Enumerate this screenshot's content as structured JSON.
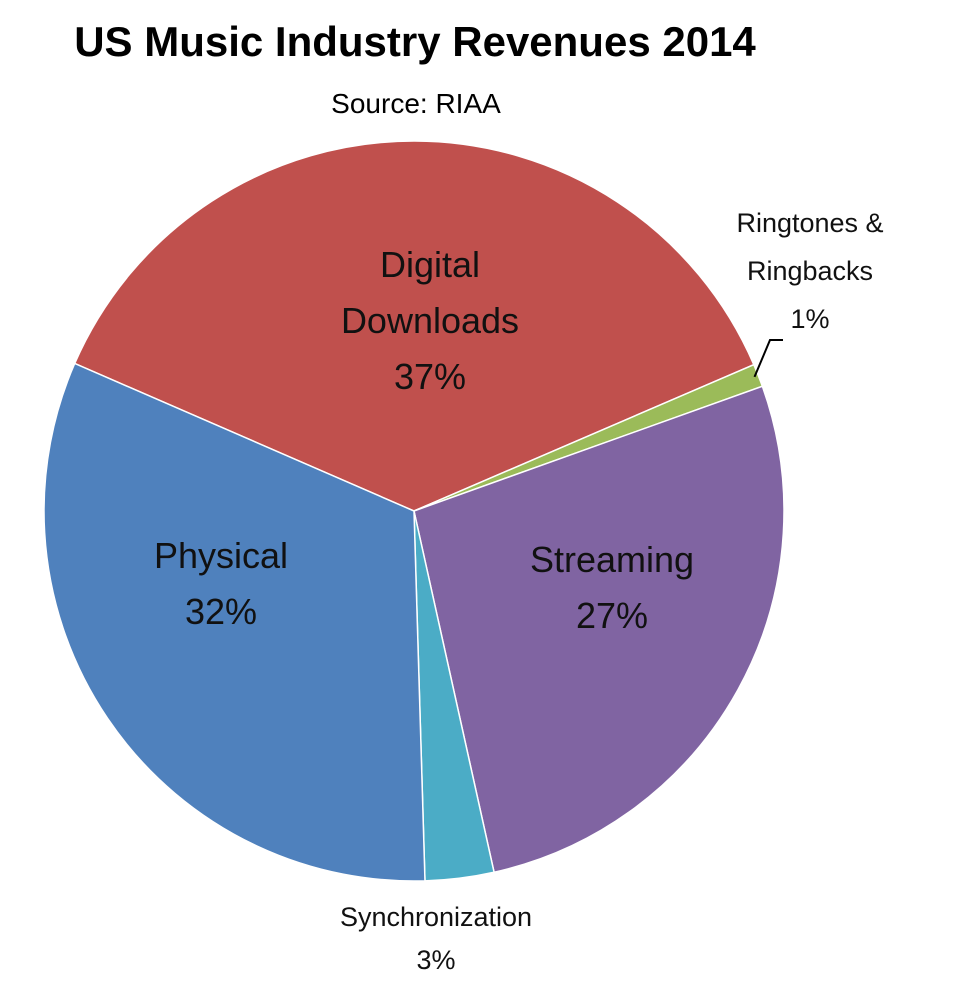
{
  "chart_data": {
    "type": "pie",
    "title": "US Music Industry Revenues 2014",
    "subtitle": "Source: RIAA",
    "slices": [
      {
        "label_lines": [
          "Digital",
          "Downloads"
        ],
        "value": 37,
        "value_label": "37%",
        "color": "#c0504d"
      },
      {
        "label_lines": [
          "Ringtones &",
          "Ringbacks"
        ],
        "value": 1,
        "value_label": "1%",
        "color": "#9bbb59"
      },
      {
        "label_lines": [
          "Streaming"
        ],
        "value": 27,
        "value_label": "27%",
        "color": "#8064a2"
      },
      {
        "label_lines": [
          "Synchronization"
        ],
        "value": 3,
        "value_label": "3%",
        "color": "#4bacc6"
      },
      {
        "label_lines": [
          "Physical"
        ],
        "value": 32,
        "value_label": "32%",
        "color": "#4f81bd"
      }
    ],
    "legend": "none"
  }
}
